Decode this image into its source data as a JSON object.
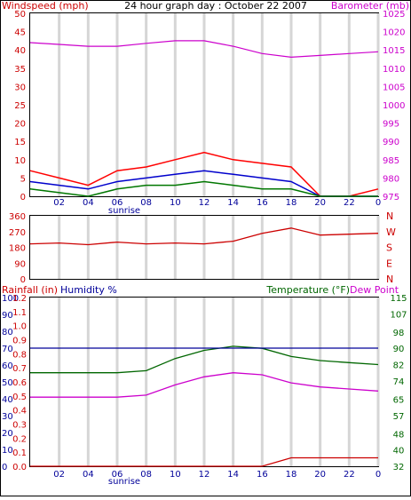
{
  "title": "24 hour graph day : October 22 2007",
  "colors": {
    "wind": "#cc0000",
    "gust": "#ff0000",
    "avg_wind": "#0000cc",
    "wind_green": "#007700",
    "barometer": "#cc00cc",
    "direction": "#cc0000",
    "rain": "#cc0000",
    "humidity": "#000099",
    "temperature": "#006600",
    "dewpoint": "#cc00cc",
    "grid": "#d6d6d6"
  },
  "labels": {
    "windspeed": "Windspeed (mph)",
    "barometer": "Barometer (mb)",
    "rainfall": "Rainfall (in)",
    "humidity": "Humidity %",
    "temperature": "Temperature (°F)",
    "dewpoint": "Dew Point",
    "sunrise": "sunrise"
  },
  "x_ticks": [
    "02",
    "04",
    "06",
    "08",
    "10",
    "12",
    "14",
    "16",
    "18",
    "20",
    "22",
    "0"
  ],
  "chart_data": [
    {
      "type": "line",
      "title": "24 hour graph day : October 22 2007",
      "x": [
        0,
        2,
        4,
        6,
        8,
        10,
        12,
        14,
        16,
        18,
        20,
        22,
        24
      ],
      "left_axis": {
        "label": "Windspeed (mph)",
        "ticks": [
          0,
          5,
          10,
          15,
          20,
          25,
          30,
          35,
          40,
          45,
          50
        ],
        "range": [
          0,
          50
        ]
      },
      "right_axis": {
        "label": "Barometer (mb)",
        "ticks": [
          975,
          980,
          985,
          990,
          995,
          1000,
          1005,
          1010,
          1015,
          1020,
          1025
        ],
        "range": [
          975,
          1025
        ]
      },
      "series": [
        {
          "name": "Barometer (mb)",
          "axis": "right",
          "values": [
            1017,
            1016.5,
            1016,
            1016,
            1016.8,
            1017.5,
            1017.5,
            1016,
            1014,
            1013,
            1013.5,
            1014,
            1014.5
          ]
        },
        {
          "axis": "left",
          "values": [
            7,
            5,
            3,
            7,
            8,
            10,
            12,
            10,
            9,
            8,
            0,
            0,
            2
          ]
        },
        {
          "axis": "left",
          "values": [
            4,
            3,
            2,
            4,
            5,
            6,
            7,
            6,
            5,
            4,
            0,
            0,
            0
          ]
        },
        {
          "axis": "left",
          "values": [
            2,
            1,
            0,
            2,
            3,
            3,
            4,
            3,
            2,
            2,
            0,
            0,
            0
          ]
        }
      ]
    },
    {
      "type": "line",
      "x": [
        0,
        2,
        4,
        6,
        8,
        10,
        12,
        14,
        16,
        18,
        20,
        22,
        24
      ],
      "left_axis": {
        "ticks": [
          0,
          90,
          180,
          270,
          360
        ],
        "range": [
          0,
          360
        ]
      },
      "right_axis": {
        "ticks": [
          "N",
          "E",
          "S",
          "W",
          "N"
        ]
      },
      "series": [
        {
          "axis": "left",
          "values": [
            200,
            205,
            195,
            210,
            200,
            205,
            200,
            215,
            260,
            290,
            250,
            255,
            260
          ]
        }
      ]
    },
    {
      "type": "line",
      "x": [
        0,
        2,
        4,
        6,
        8,
        10,
        12,
        14,
        16,
        18,
        20,
        22,
        24
      ],
      "left_axis_rain": {
        "label": "Rainfall (in)",
        "ticks": [
          0.0,
          0.1,
          0.2,
          0.3,
          0.4,
          0.5,
          0.6,
          0.7,
          0.8,
          0.9,
          1.0,
          1.1,
          1.2
        ],
        "range": [
          0,
          1.2
        ]
      },
      "left_axis_humidity": {
        "label": "Humidity %",
        "ticks": [
          0,
          10,
          20,
          30,
          40,
          50,
          60,
          70,
          80,
          90,
          100
        ],
        "range": [
          0,
          100
        ]
      },
      "right_axis": {
        "label": "Temperature (°F)",
        "ticks": [
          32,
          40,
          48,
          57,
          65,
          74,
          82,
          90,
          98,
          107,
          115
        ],
        "range": [
          32,
          115
        ]
      },
      "series": [
        {
          "name": "Temperature (°F)",
          "axis": "right",
          "values": [
            78,
            78,
            78,
            78,
            79,
            85,
            89,
            91,
            90,
            86,
            84,
            83,
            82
          ]
        },
        {
          "name": "Dew Point",
          "axis": "right",
          "values": [
            66,
            66,
            66,
            66,
            67,
            72,
            76,
            78,
            77,
            73,
            71,
            70,
            69
          ]
        },
        {
          "name": "Humidity %",
          "axis": "left_humidity",
          "values": [
            70,
            70,
            70,
            70,
            70,
            70,
            70,
            70,
            70,
            70,
            70,
            70,
            70
          ]
        },
        {
          "name": "Rainfall (in)",
          "axis": "left_rain",
          "values": [
            0,
            0,
            0,
            0,
            0,
            0,
            0,
            0,
            0,
            0.06,
            0.06,
            0.06,
            0.06
          ]
        }
      ]
    }
  ]
}
